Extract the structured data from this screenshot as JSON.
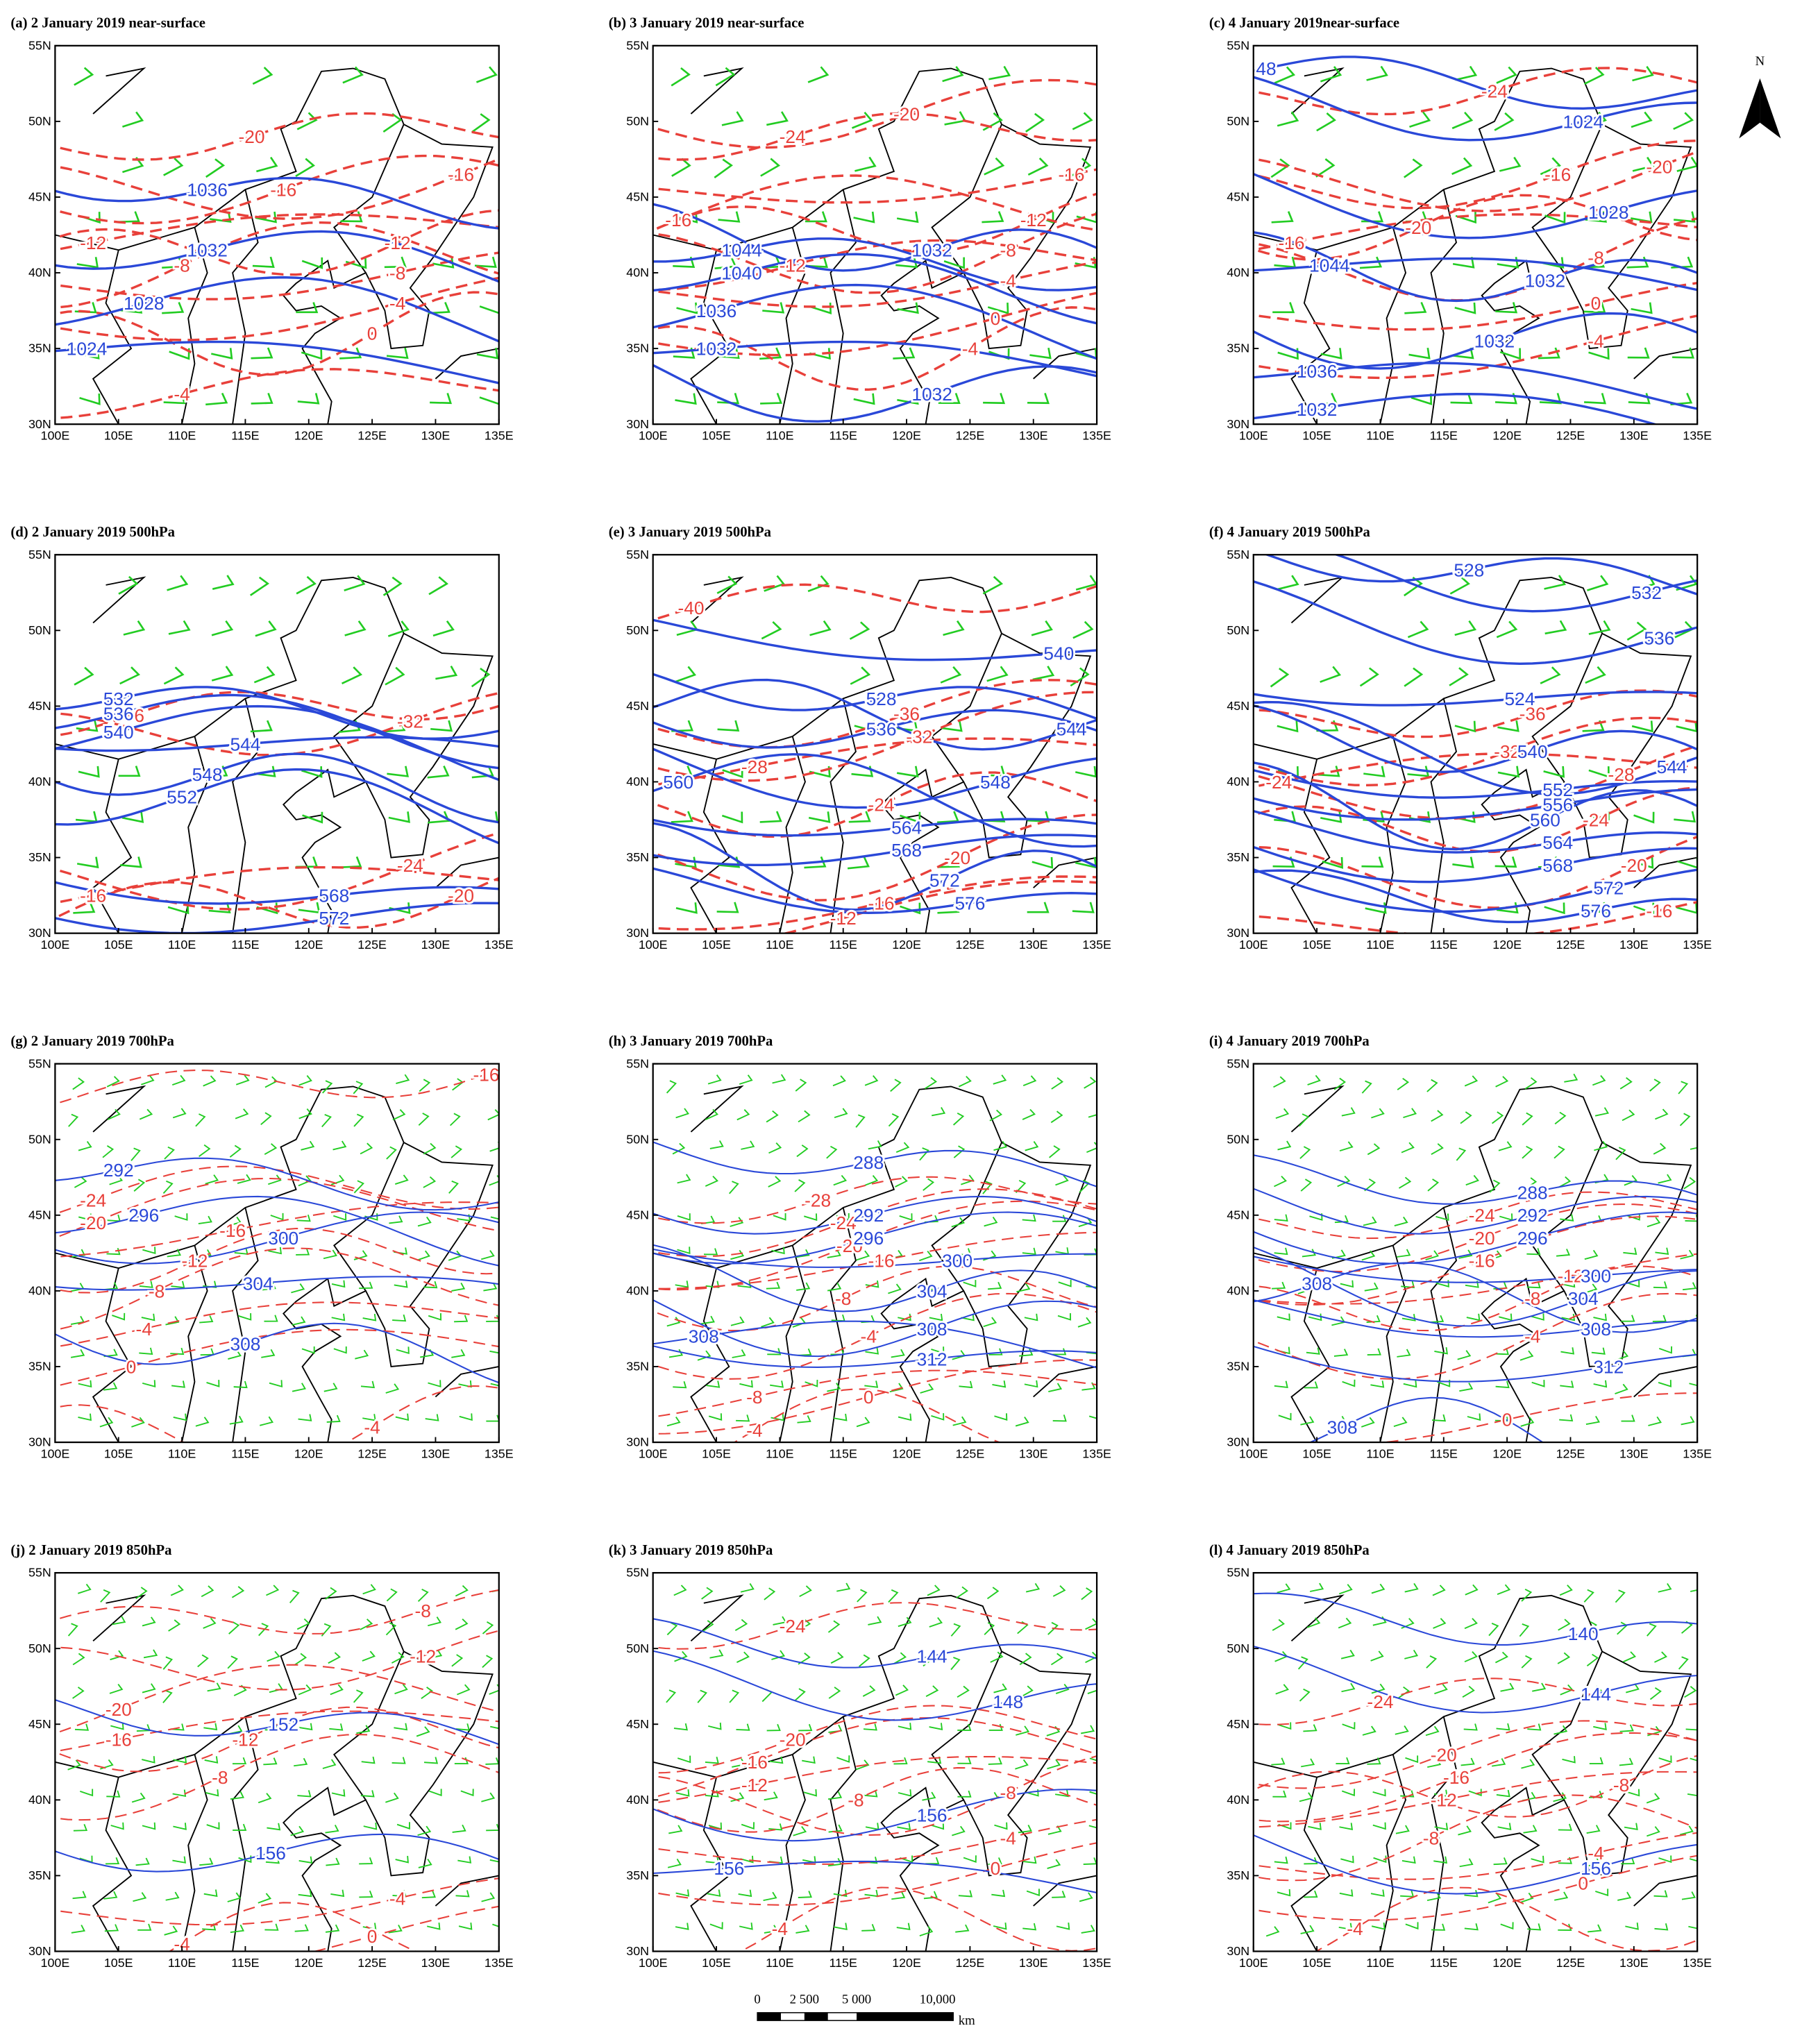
{
  "north": "N",
  "scale_bar": {
    "labels": [
      "0",
      "2 500",
      "5 000",
      "10,000"
    ],
    "unit": "km"
  },
  "axes": {
    "lat_labels": [
      "30N",
      "35N",
      "40N",
      "45N",
      "50N",
      "55N"
    ],
    "lon_labels": [
      "100E",
      "105E",
      "110E",
      "115E",
      "120E",
      "125E",
      "130E",
      "135E"
    ]
  },
  "panels": [
    {
      "title": "(a) 2 January 2019 near-surface",
      "pressure_labels": [
        1036,
        1032,
        1028,
        1024
      ],
      "temperature_labels": [
        -20,
        -16,
        -16,
        -12,
        -12,
        -8,
        -8,
        -4,
        0,
        -4
      ]
    },
    {
      "title": "(b) 3 January 2019 near-surface",
      "pressure_labels": [
        1044,
        1040,
        1036,
        1032,
        1032,
        1032
      ],
      "temperature_labels": [
        -24,
        -20,
        -16,
        -16,
        -12,
        -8,
        -4,
        0,
        -4,
        -12
      ]
    },
    {
      "title": "(c) 4 January 2019near-surface",
      "pressure_labels": [
        48,
        1024,
        1028,
        1044,
        1032,
        1032,
        1036,
        1032
      ],
      "temperature_labels": [
        -24,
        -16,
        -20,
        -16,
        -20,
        -8,
        0,
        -4
      ]
    },
    {
      "title": "(d) 2 January 2019 500hPa",
      "pressure_labels": [
        532,
        536,
        540,
        544,
        548,
        552,
        568,
        572
      ],
      "temperature_labels": [
        -36,
        -32,
        -24,
        -16,
        -20
      ]
    },
    {
      "title": "(e) 3 January 2019 500hPa",
      "pressure_labels": [
        528,
        536,
        548,
        540,
        544,
        560,
        564,
        568,
        572,
        576
      ],
      "temperature_labels": [
        -40,
        -36,
        -32,
        -28,
        -24,
        -20,
        -16,
        -12
      ]
    },
    {
      "title": "(f) 4 January 2019 500hPa",
      "pressure_labels": [
        528,
        532,
        536,
        524,
        540,
        544,
        552,
        556,
        560,
        564,
        568,
        572,
        576
      ],
      "temperature_labels": [
        -36,
        -32,
        -28,
        -24,
        -24,
        -20,
        -16
      ]
    },
    {
      "title": "(g) 2 January 2019 700hPa",
      "pressure_labels": [
        292,
        296,
        300,
        304,
        308
      ],
      "temperature_labels": [
        -16,
        -24,
        -20,
        -16,
        -12,
        -8,
        -4,
        0,
        -4
      ]
    },
    {
      "title": "(h) 3 January 2019 700hPa",
      "pressure_labels": [
        288,
        292,
        296,
        300,
        304,
        308,
        312,
        308
      ],
      "temperature_labels": [
        -28,
        -24,
        -20,
        -16,
        -8,
        -4,
        -8,
        0,
        -4
      ]
    },
    {
      "title": "(i) 4 January 2019 700hPa",
      "pressure_labels": [
        288,
        292,
        296,
        300,
        308,
        304,
        308,
        312,
        308
      ],
      "temperature_labels": [
        -24,
        -20,
        -16,
        -12,
        -8,
        -4,
        0
      ]
    },
    {
      "title": "(j) 2 January 2019 850hPa",
      "pressure_labels": [
        152,
        156
      ],
      "temperature_labels": [
        -8,
        -12,
        -20,
        -16,
        -12,
        -8,
        -4,
        0,
        -4
      ]
    },
    {
      "title": "(k) 3 January 2019 850hPa",
      "pressure_labels": [
        144,
        148,
        156,
        156
      ],
      "temperature_labels": [
        -24,
        -20,
        -16,
        -12,
        -8,
        -8,
        -4,
        0,
        -4
      ]
    },
    {
      "title": "(l) 4 January 2019 850hPa",
      "pressure_labels": [
        140,
        144,
        156
      ],
      "temperature_labels": [
        -24,
        -20,
        -16,
        -12,
        -8,
        -8,
        -4,
        0,
        -4
      ]
    }
  ]
}
